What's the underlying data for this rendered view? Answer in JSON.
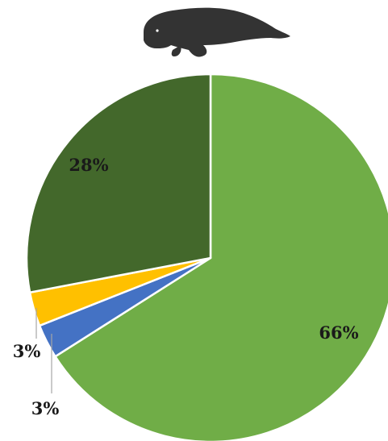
{
  "icon": "manatee-icon",
  "colors": {
    "slice_1": "#70ad47",
    "slice_2": "#4472c4",
    "slice_3": "#ffc000",
    "slice_4": "#43682b",
    "icon": "#333333",
    "leader": "#a6a6a6",
    "separator": "#ffffff"
  },
  "chart_data": {
    "type": "pie",
    "title": "",
    "start_angle_deg": 0,
    "direction": "clockwise",
    "slices": [
      {
        "value": 66,
        "label": "66%",
        "color": "#70ad47"
      },
      {
        "value": 3,
        "label": "3%",
        "color": "#4472c4"
      },
      {
        "value": 3,
        "label": "3%",
        "color": "#ffc000"
      },
      {
        "value": 28,
        "label": "28%",
        "color": "#43682b"
      }
    ]
  }
}
